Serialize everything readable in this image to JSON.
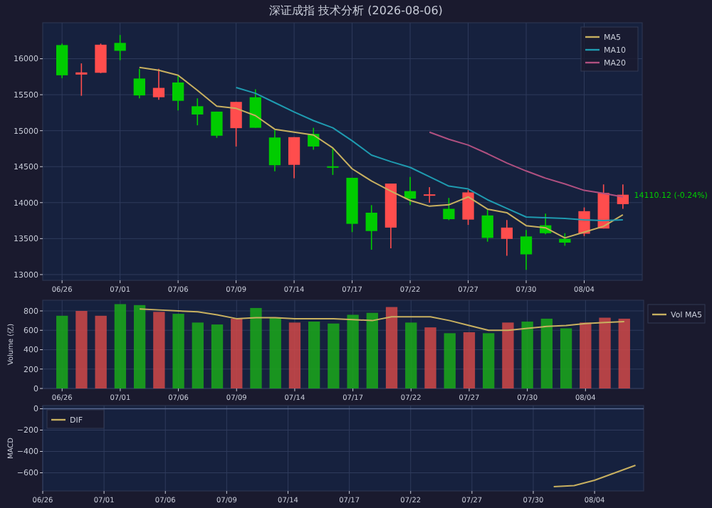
{
  "chart_data": [
    {
      "type": "candlestick",
      "title": "深证成指 技术分析 (2026-08-06)",
      "categories": [
        "06/26",
        null,
        null,
        "07/01",
        null,
        null,
        "07/06",
        null,
        null,
        "07/09",
        null,
        null,
        "07/14",
        null,
        null,
        "07/17",
        null,
        null,
        "07/22",
        null,
        null,
        "07/27",
        null,
        null,
        "07/30",
        null,
        null,
        "08/04",
        null,
        null
      ],
      "ohlc": [
        [
          16190,
          16210,
          15730,
          15770
        ],
        [
          15780,
          15935,
          15485,
          15810
        ],
        [
          15805,
          16210,
          15800,
          16195
        ],
        [
          16220,
          16330,
          15980,
          16110
        ],
        [
          15725,
          15860,
          15450,
          15490
        ],
        [
          15465,
          15860,
          15430,
          15595
        ],
        [
          15670,
          15760,
          15280,
          15415
        ],
        [
          15340,
          15450,
          15075,
          15225
        ],
        [
          15265,
          15265,
          14900,
          14930
        ],
        [
          15035,
          15400,
          14780,
          15400
        ],
        [
          15465,
          15575,
          15040,
          15040
        ],
        [
          14905,
          15010,
          14435,
          14520
        ],
        [
          14525,
          14910,
          14340,
          14910
        ],
        [
          14955,
          15040,
          14735,
          14780
        ],
        [
          14505,
          14760,
          14385,
          14495
        ],
        [
          14345,
          14345,
          13590,
          13705
        ],
        [
          13860,
          13965,
          13345,
          13605
        ],
        [
          13653,
          14265,
          13365,
          14265
        ],
        [
          14160,
          14357,
          13965,
          14055
        ],
        [
          14105,
          14215,
          13998,
          14115
        ],
        [
          13914,
          14065,
          13757,
          13770
        ],
        [
          13764,
          14175,
          13690,
          14142
        ],
        [
          13822,
          13900,
          13457,
          13510
        ],
        [
          13496,
          13757,
          13260,
          13653
        ],
        [
          13530,
          13620,
          13066,
          13281
        ],
        [
          13685,
          13848,
          13560,
          13575
        ],
        [
          13496,
          13575,
          13400,
          13444
        ],
        [
          13568,
          13933,
          13535,
          13881
        ],
        [
          13640,
          14253,
          13640,
          14135
        ],
        [
          13979,
          14253,
          13914,
          14110
        ]
      ],
      "colors": [
        "#00cc00",
        "#ff4d4d",
        "#ff4d4d",
        "#00cc00",
        "#00cc00",
        "#ff4d4d",
        "#00cc00",
        "#00cc00",
        "#00cc00",
        "#ff4d4d",
        "#00cc00",
        "#00cc00",
        "#ff4d4d",
        "#00cc00",
        "#00cc00",
        "#00cc00",
        "#00cc00",
        "#ff4d4d",
        "#00cc00",
        "#ff4d4d",
        "#00cc00",
        "#ff4d4d",
        "#00cc00",
        "#ff4d4d",
        "#00cc00",
        "#00cc00",
        "#00cc00",
        "#ff4d4d",
        "#ff4d4d",
        "#ff4d4d"
      ],
      "series": [
        {
          "name": "MA5",
          "type": "line",
          "color": "#c8b060",
          "values": [
            null,
            null,
            null,
            null,
            15880,
            15840,
            15770,
            15560,
            15340,
            15310,
            15210,
            15020,
            14980,
            14940,
            14760,
            14470,
            14300,
            14160,
            14030,
            13950,
            13970,
            14080,
            13910,
            13860,
            13680,
            13650,
            13510,
            13590,
            13670,
            13830
          ]
        },
        {
          "name": "MA10",
          "type": "line",
          "color": "#1f9bb0",
          "values": [
            null,
            null,
            null,
            null,
            null,
            null,
            null,
            null,
            null,
            15600,
            15520,
            15390,
            15260,
            15140,
            15040,
            14860,
            14660,
            14570,
            14490,
            14360,
            14230,
            14190,
            14040,
            13920,
            13800,
            13790,
            13780,
            13760,
            13750,
            13760
          ]
        },
        {
          "name": "MA20",
          "type": "line",
          "color": "#b05080",
          "values": [
            null,
            null,
            null,
            null,
            null,
            null,
            null,
            null,
            null,
            null,
            null,
            null,
            null,
            null,
            null,
            null,
            null,
            null,
            null,
            14980,
            14880,
            14800,
            14680,
            14550,
            14440,
            14340,
            14260,
            14170,
            14130,
            14080
          ]
        }
      ],
      "ylim": [
        12920,
        16500
      ],
      "yticks": [
        13000,
        13500,
        14000,
        14500,
        15000,
        15500,
        16000
      ],
      "grid": true,
      "legend": "top right",
      "annotations": [
        "14110.12 (-0.24%)"
      ]
    },
    {
      "type": "bar",
      "categories": [
        "06/26",
        null,
        null,
        "07/01",
        null,
        null,
        "07/06",
        null,
        null,
        "07/09",
        null,
        null,
        "07/14",
        null,
        null,
        "07/17",
        null,
        null,
        "07/22",
        null,
        null,
        "07/27",
        null,
        null,
        "07/30",
        null,
        null,
        "08/04",
        null,
        null
      ],
      "values": [
        750,
        800,
        750,
        870,
        860,
        790,
        770,
        680,
        660,
        720,
        830,
        730,
        680,
        690,
        670,
        760,
        780,
        840,
        680,
        630,
        570,
        580,
        570,
        680,
        690,
        720,
        620,
        680,
        730,
        720
      ],
      "colors": [
        "#1aa81a",
        "#d04848",
        "#d04848",
        "#1aa81a",
        "#1aa81a",
        "#d04848",
        "#1aa81a",
        "#1aa81a",
        "#1aa81a",
        "#d04848",
        "#1aa81a",
        "#1aa81a",
        "#d04848",
        "#1aa81a",
        "#1aa81a",
        "#1aa81a",
        "#1aa81a",
        "#d04848",
        "#1aa81a",
        "#d04848",
        "#1aa81a",
        "#d04848",
        "#1aa81a",
        "#d04848",
        "#1aa81a",
        "#1aa81a",
        "#1aa81a",
        "#d04848",
        "#d04848",
        "#d04848"
      ],
      "series": [
        {
          "name": "Vol MA5",
          "type": "line",
          "color": "#c8b060",
          "values": [
            null,
            null,
            null,
            null,
            820,
            810,
            800,
            790,
            760,
            720,
            730,
            730,
            720,
            720,
            720,
            710,
            700,
            740,
            740,
            740,
            700,
            650,
            600,
            600,
            620,
            640,
            650,
            670,
            680,
            690
          ]
        }
      ],
      "ylabel": "Volume (亿)",
      "ylim": [
        0,
        910
      ],
      "yticks": [
        0,
        200,
        400,
        600,
        800
      ],
      "grid": true,
      "legend": "right"
    },
    {
      "type": "line",
      "categories": [
        "06/26",
        null,
        null,
        "07/01",
        null,
        null,
        "07/06",
        null,
        null,
        "07/09",
        null,
        null,
        "07/14",
        null,
        null,
        "07/17",
        null,
        null,
        "07/22",
        null,
        null,
        "07/27",
        null,
        null,
        "07/30",
        null,
        null,
        "08/04",
        null,
        null
      ],
      "series": [
        {
          "name": "DIF",
          "color": "#c8b060",
          "values": [
            null,
            null,
            null,
            null,
            null,
            null,
            null,
            null,
            null,
            null,
            null,
            null,
            null,
            null,
            null,
            null,
            null,
            null,
            null,
            null,
            null,
            null,
            null,
            null,
            null,
            -730,
            -720,
            -670,
            -600,
            -530
          ]
        }
      ],
      "ylabel": "MACD",
      "ylim": [
        -770,
        30
      ],
      "yticks": [
        0,
        {
          "value": -200,
          "label": "−200"
        },
        {
          "value": -400,
          "label": "−400"
        },
        {
          "value": -600,
          "label": "−600"
        }
      ],
      "grid": true,
      "legend": "top left",
      "ref_lines": [
        {
          "axis": "y",
          "value": 0
        }
      ]
    }
  ]
}
